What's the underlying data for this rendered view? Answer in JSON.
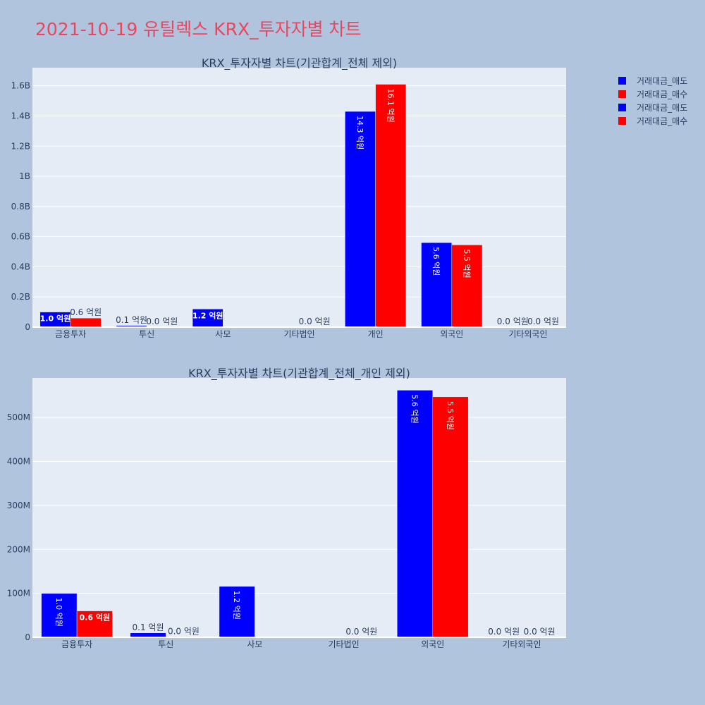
{
  "title": "2021-10-19 유틸렉스 KRX_투자자별 차트",
  "colors": {
    "sell": "#0000ff",
    "buy": "#ff0000",
    "title": "#e8475f"
  },
  "legend": [
    {
      "label": "거래대금_매도",
      "color": "#0000ff"
    },
    {
      "label": "거래대금_매수",
      "color": "#ff0000"
    },
    {
      "label": "거래대금_매도",
      "color": "#0000ff"
    },
    {
      "label": "거래대금_매수",
      "color": "#ff0000"
    }
  ],
  "chart_data": [
    {
      "type": "bar",
      "title": "KRX_투자자별 차트(기관합계_전체 제외)",
      "categories": [
        "금융투자",
        "투신",
        "사모",
        "기타법인",
        "개인",
        "외국인",
        "기타외국인"
      ],
      "ylim": [
        0,
        1720000000
      ],
      "yticks": [
        0,
        200000000,
        400000000,
        600000000,
        800000000,
        1000000000,
        1200000000,
        1400000000,
        1600000000
      ],
      "ytick_labels": [
        "0",
        "0.2B",
        "0.4B",
        "0.6B",
        "0.8B",
        "1B",
        "1.2B",
        "1.4B",
        "1.6B"
      ],
      "grid": true,
      "series": [
        {
          "name": "거래대금_매도",
          "color": "#0000ff",
          "values": [
            100000000,
            10000000,
            120000000,
            0,
            1430000000,
            560000000,
            0
          ],
          "labels": [
            "1.0 억원",
            "0.1 억원",
            "1.2 억원",
            "",
            "14.3 억원",
            "5.6 억원",
            "0.0 억원"
          ]
        },
        {
          "name": "거래대금_매수",
          "color": "#ff0000",
          "values": [
            60000000,
            1000000,
            0,
            0,
            1610000000,
            545000000,
            0
          ],
          "labels": [
            "0.6 억원",
            "0.0 억원",
            "",
            "0.0 억원",
            "16.1 억원",
            "5.5 억원",
            "0.0 억원"
          ]
        }
      ]
    },
    {
      "type": "bar",
      "title": "KRX_투자자별 차트(기관합계_전체_개인 제외)",
      "categories": [
        "금융투자",
        "투신",
        "사모",
        "기타법인",
        "외국인",
        "기타외국인"
      ],
      "ylim": [
        0,
        590000000
      ],
      "yticks": [
        0,
        100000000,
        200000000,
        300000000,
        400000000,
        500000000
      ],
      "ytick_labels": [
        "0",
        "100M",
        "200M",
        "300M",
        "400M",
        "500M"
      ],
      "grid": true,
      "series": [
        {
          "name": "거래대금_매도",
          "color": "#0000ff",
          "values": [
            100000000,
            10000000,
            116000000,
            0,
            562000000,
            0
          ],
          "labels": [
            "1.0 억원",
            "0.1 억원",
            "1.2 억원",
            "",
            "5.6 억원",
            "0.0 억원"
          ]
        },
        {
          "name": "거래대금_매수",
          "color": "#ff0000",
          "values": [
            60000000,
            1000000,
            0,
            0,
            547000000,
            0
          ],
          "labels": [
            "0.6 억원",
            "0.0 억원",
            "",
            "0.0 억원",
            "5.5 억원",
            "0.0 억원"
          ]
        }
      ]
    }
  ]
}
